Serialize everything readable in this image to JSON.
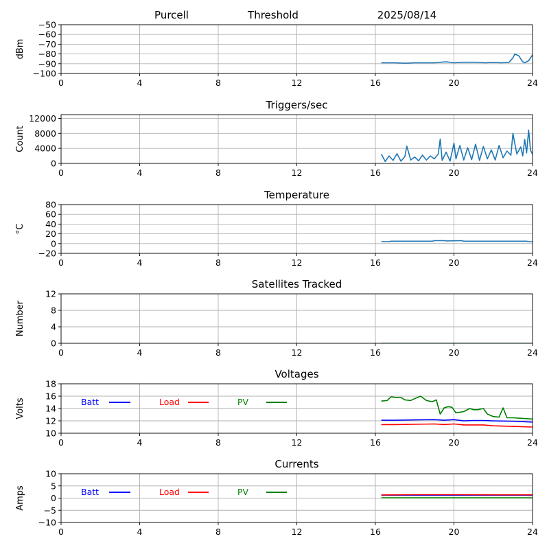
{
  "header": {
    "station": "Purcell",
    "mode": "Threshold",
    "date": "2025/08/14"
  },
  "chart_data": [
    {
      "type": "line",
      "title": "",
      "xlabel": "",
      "ylabel": "dBm",
      "xlim": [
        0,
        24
      ],
      "ylim": [
        -100,
        -50
      ],
      "xticks": [
        0,
        4,
        8,
        12,
        16,
        20,
        24
      ],
      "yticks": [
        -100,
        -90,
        -80,
        -70,
        -60,
        -50
      ],
      "grid": true,
      "series": [
        {
          "color": "#1f77b4",
          "x": [
            16.3,
            16.5,
            17.0,
            17.5,
            18.0,
            18.5,
            19.0,
            19.3,
            19.6,
            20.0,
            20.4,
            20.8,
            21.2,
            21.6,
            22.0,
            22.4,
            22.8,
            23.0,
            23.1,
            23.3,
            23.5,
            23.6,
            23.8,
            24.0
          ],
          "y": [
            -89,
            -89,
            -89,
            -89.5,
            -89,
            -89,
            -89,
            -88.5,
            -88,
            -89,
            -88.5,
            -88.5,
            -88.5,
            -89,
            -88.5,
            -89,
            -88.5,
            -84,
            -80,
            -82,
            -88,
            -89,
            -87,
            -81
          ]
        }
      ]
    },
    {
      "type": "line",
      "title": "Triggers/sec",
      "xlabel": "",
      "ylabel": "Count",
      "xlim": [
        0,
        24
      ],
      "ylim": [
        0,
        13000
      ],
      "xticks": [
        0,
        4,
        8,
        12,
        16,
        20,
        24
      ],
      "yticks": [
        0,
        4000,
        8000,
        12000
      ],
      "ytick_labels": [
        "0",
        "4000",
        "8000",
        "12000"
      ],
      "grid": true,
      "series": [
        {
          "color": "#1f77b4",
          "x": [
            16.3,
            16.5,
            16.7,
            16.9,
            17.1,
            17.3,
            17.5,
            17.6,
            17.8,
            18.0,
            18.2,
            18.4,
            18.6,
            18.8,
            19.0,
            19.2,
            19.3,
            19.4,
            19.6,
            19.8,
            20.0,
            20.1,
            20.3,
            20.5,
            20.7,
            20.9,
            21.1,
            21.3,
            21.5,
            21.7,
            21.9,
            22.1,
            22.3,
            22.5,
            22.7,
            22.9,
            23.0,
            23.2,
            23.4,
            23.5,
            23.6,
            23.7,
            23.8,
            23.9,
            24.0
          ],
          "y": [
            2500,
            500,
            2000,
            800,
            2600,
            600,
            1800,
            4600,
            900,
            1700,
            700,
            2200,
            900,
            2000,
            1200,
            2500,
            6500,
            800,
            3000,
            600,
            5400,
            1200,
            4800,
            900,
            4200,
            1000,
            5100,
            800,
            4500,
            1200,
            3600,
            900,
            4800,
            1500,
            3300,
            2200,
            8000,
            2500,
            4400,
            2000,
            6400,
            2800,
            8900,
            3500,
            2400
          ]
        }
      ]
    },
    {
      "type": "line",
      "title": "Temperature",
      "xlabel": "",
      "ylabel": "°C",
      "xlim": [
        0,
        24
      ],
      "ylim": [
        -20,
        80
      ],
      "xticks": [
        0,
        4,
        8,
        12,
        16,
        20,
        24
      ],
      "yticks": [
        -20,
        0,
        20,
        40,
        60,
        80
      ],
      "grid": true,
      "series": [
        {
          "color": "#1f77b4",
          "x": [
            16.3,
            16.7,
            16.8,
            18.9,
            19.0,
            19.5,
            19.6,
            20.4,
            20.5,
            23.7,
            23.8,
            24.0
          ],
          "y": [
            4,
            4,
            5,
            5,
            6,
            6,
            5.5,
            6,
            5,
            5,
            4,
            4
          ]
        }
      ]
    },
    {
      "type": "line",
      "title": "Satellites Tracked",
      "xlabel": "",
      "ylabel": "Number",
      "xlim": [
        0,
        24
      ],
      "ylim": [
        0,
        12
      ],
      "xticks": [
        0,
        4,
        8,
        12,
        16,
        20,
        24
      ],
      "yticks": [
        0,
        4,
        8,
        12
      ],
      "grid": true,
      "series": [
        {
          "color": "#008080",
          "x": [
            16.3,
            24.0
          ],
          "y": [
            0,
            0
          ]
        }
      ]
    },
    {
      "type": "line",
      "title": "Voltages",
      "xlabel": "",
      "ylabel": "Volts",
      "xlim": [
        0,
        24
      ],
      "ylim": [
        10,
        18
      ],
      "xticks": [
        0,
        4,
        8,
        12,
        16,
        20,
        24
      ],
      "yticks": [
        10,
        12,
        14,
        16,
        18
      ],
      "grid": true,
      "legend_placement": "top-left inline",
      "series": [
        {
          "name": "Batt",
          "color": "#0000ff",
          "x": [
            16.3,
            17.0,
            18.0,
            19.0,
            19.5,
            20.0,
            20.5,
            21.0,
            21.5,
            22.0,
            23.0,
            24.0
          ],
          "y": [
            12.1,
            12.1,
            12.15,
            12.2,
            12.1,
            12.2,
            12.0,
            12.05,
            12.05,
            12.0,
            11.95,
            11.8
          ]
        },
        {
          "name": "Load",
          "color": "#ff0000",
          "x": [
            16.3,
            17.0,
            18.0,
            19.0,
            19.5,
            20.0,
            20.5,
            21.0,
            21.5,
            22.0,
            23.0,
            24.0
          ],
          "y": [
            11.4,
            11.4,
            11.45,
            11.5,
            11.4,
            11.5,
            11.35,
            11.35,
            11.35,
            11.2,
            11.1,
            11.0
          ]
        },
        {
          "name": "PV",
          "color": "#008000",
          "x": [
            16.3,
            16.6,
            16.8,
            17.0,
            17.3,
            17.5,
            17.8,
            18.0,
            18.3,
            18.6,
            18.9,
            19.1,
            19.3,
            19.5,
            19.7,
            19.9,
            20.1,
            20.3,
            20.5,
            20.8,
            21.0,
            21.2,
            21.5,
            21.7,
            22.0,
            22.3,
            22.5,
            22.7,
            23.0,
            23.5,
            24.0
          ],
          "y": [
            15.2,
            15.3,
            15.9,
            15.8,
            15.8,
            15.4,
            15.3,
            15.6,
            16.0,
            15.3,
            15.1,
            15.4,
            13.1,
            14.1,
            14.3,
            14.2,
            13.3,
            13.4,
            13.5,
            14.0,
            13.8,
            13.8,
            14.0,
            13.1,
            12.7,
            12.6,
            14.1,
            12.5,
            12.5,
            12.4,
            12.3
          ]
        }
      ]
    },
    {
      "type": "line",
      "title": "Currents",
      "xlabel": "",
      "ylabel": "Amps",
      "xlim": [
        0,
        24
      ],
      "ylim": [
        -10,
        10
      ],
      "xticks": [
        0,
        4,
        8,
        12,
        16,
        20,
        24
      ],
      "yticks": [
        -10,
        -5,
        0,
        5,
        10
      ],
      "grid": true,
      "legend_placement": "top-left inline",
      "series": [
        {
          "name": "Batt",
          "color": "#0000ff",
          "x": [
            16.3,
            24.0
          ],
          "y": [
            1.2,
            1.2
          ]
        },
        {
          "name": "Load",
          "color": "#ff0000",
          "x": [
            16.3,
            18.0,
            20.0,
            22.0,
            24.0
          ],
          "y": [
            1.3,
            1.4,
            1.4,
            1.35,
            1.35
          ]
        },
        {
          "name": "PV",
          "color": "#008000",
          "x": [
            16.3,
            24.0
          ],
          "y": [
            0.1,
            0.1
          ]
        }
      ]
    }
  ]
}
